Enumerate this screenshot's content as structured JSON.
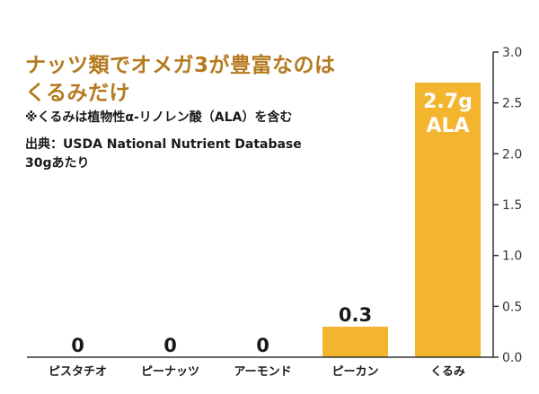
{
  "title_lines": [
    "ナッツ類でオメガ3が豊富なのは",
    "くるみだけ"
  ],
  "note": "※くるみは植物性α-リノレン酸（ALA）を含む",
  "source_lines": [
    "出典：USDA National Nutrient Database",
    "30gあたり"
  ],
  "colors": {
    "bar": "#f4b52e",
    "title": "#b57a1f",
    "axis": "#333333",
    "bar_label_inside": "#ffffff",
    "bar_label_outside": "#1a1a1a"
  },
  "chart_data": {
    "type": "bar",
    "categories": [
      "ピスタチオ",
      "ピーナッツ",
      "アーモンド",
      "ピーカン",
      "くるみ"
    ],
    "values": [
      0,
      0,
      0,
      0.3,
      2.7
    ],
    "value_labels": [
      "0",
      "0",
      "0",
      "0.3",
      "2.7g\nALA"
    ],
    "yticks": [
      "0.0",
      "0.5",
      "1.0",
      "1.5",
      "2.0",
      "2.5",
      "3.0"
    ],
    "ylim": [
      0,
      3.0
    ],
    "yaxis_position": "right",
    "grid": false
  }
}
